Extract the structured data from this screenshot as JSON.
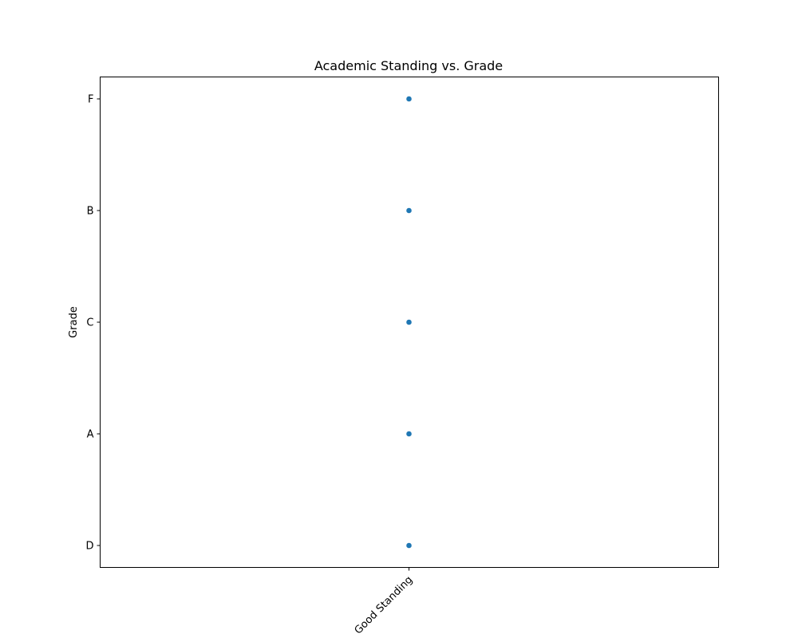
{
  "chart_data": {
    "type": "scatter",
    "title": "Academic Standing vs. Grade",
    "xlabel": "",
    "ylabel": "Grade",
    "x_categories": [
      "Good Standing"
    ],
    "y_categories": [
      "D",
      "A",
      "C",
      "B",
      "F"
    ],
    "points": [
      {
        "x": "Good Standing",
        "y": "F"
      },
      {
        "x": "Good Standing",
        "y": "B"
      },
      {
        "x": "Good Standing",
        "y": "C"
      },
      {
        "x": "Good Standing",
        "y": "A"
      },
      {
        "x": "Good Standing",
        "y": "D"
      }
    ],
    "color": "#1f77b4",
    "grid": false,
    "legend": "none"
  }
}
